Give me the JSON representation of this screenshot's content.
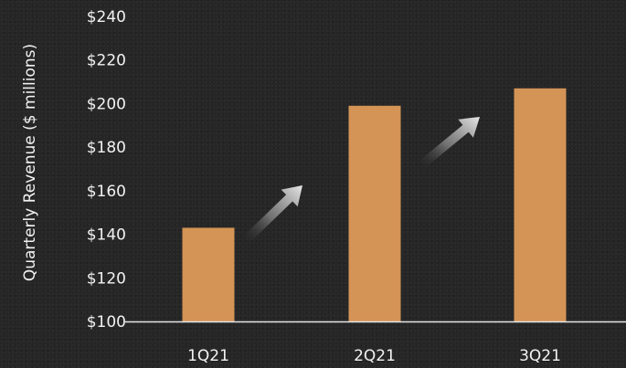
{
  "chart_data": {
    "type": "bar",
    "title": "",
    "xlabel": "",
    "ylabel": "Quarterly Revenue ($ millions)",
    "categories": [
      "1Q21",
      "2Q21",
      "3Q21"
    ],
    "values": [
      143,
      199,
      207
    ],
    "ylim": [
      100,
      240
    ],
    "y_ticks": [
      100,
      120,
      140,
      160,
      180,
      200,
      220,
      240
    ],
    "y_tick_labels": [
      "$100",
      "$120",
      "$140",
      "$160",
      "$180",
      "$200",
      "$220",
      "$240"
    ],
    "bar_color": "#d49456",
    "axis_color": "#e6e6e6",
    "text_color": "#f2f2f2",
    "background_color": "#262626",
    "grid": false,
    "legend": "none",
    "annotations": [
      {
        "type": "growth-arrow",
        "from": "1Q21",
        "to": "2Q21"
      },
      {
        "type": "growth-arrow",
        "from": "2Q21",
        "to": "3Q21"
      }
    ]
  }
}
